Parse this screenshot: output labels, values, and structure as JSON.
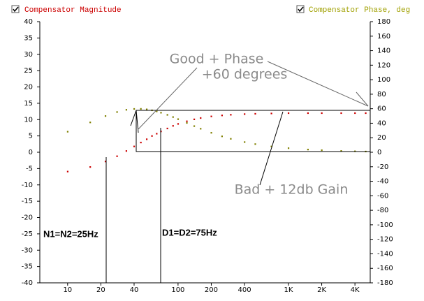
{
  "chart_data": {
    "type": "scatter",
    "x": [
      10,
      16,
      22,
      28,
      34,
      40,
      46,
      52,
      58,
      64,
      70,
      80,
      90,
      100,
      120,
      140,
      160,
      200,
      250,
      300,
      400,
      500,
      700,
      1000,
      1500,
      2000,
      3000,
      4000,
      5000
    ],
    "series": [
      {
        "name": "Compensator Magnitude",
        "color": "#cc0000",
        "values": [
          -5.9,
          -4.5,
          -2.8,
          -1.2,
          0.4,
          1.8,
          3.0,
          4.0,
          5.0,
          5.7,
          6.4,
          7.3,
          8.1,
          8.7,
          9.5,
          10.1,
          10.5,
          11.0,
          11.3,
          11.5,
          11.7,
          11.8,
          11.9,
          12.0,
          12.0,
          12.0,
          12.0,
          12.0,
          12.0
        ]
      },
      {
        "name": "Compensator Phase, deg",
        "color": "#808000",
        "axis": "y2",
        "values": [
          28.4,
          41.2,
          50.0,
          55.5,
          58.6,
          59.8,
          59.9,
          59.2,
          57.9,
          56.4,
          54.6,
          51.6,
          48.6,
          45.7,
          40.5,
          36.1,
          32.5,
          26.9,
          22.0,
          18.6,
          14.1,
          11.3,
          8.1,
          5.7,
          3.8,
          2.9,
          1.9,
          1.4,
          1.1
        ]
      }
    ],
    "log_x": true,
    "xlim": [
      5.6,
      5500
    ],
    "xticks": [
      10,
      20,
      40,
      100,
      200,
      400,
      {
        "value": 1000,
        "label": "1K"
      },
      {
        "value": 2000,
        "label": "2K"
      },
      {
        "value": 4000,
        "label": "4K"
      }
    ],
    "ylim": [
      -40,
      40
    ],
    "yticks": [
      -40,
      -35,
      -30,
      -25,
      -20,
      -15,
      -10,
      -5,
      0,
      5,
      10,
      15,
      20,
      25,
      30,
      35,
      40
    ],
    "y2lim": [
      -180,
      180
    ],
    "y2ticks": [
      -180,
      -160,
      -140,
      -120,
      -100,
      -80,
      -60,
      -40,
      -20,
      0,
      20,
      40,
      60,
      80,
      100,
      120,
      140,
      160,
      180
    ],
    "annotations": [
      "Good + Phase",
      "+60 degrees",
      "Bad + 12db Gain",
      "N1=N2=25Hz",
      "D1=D2=75Hz"
    ]
  }
}
